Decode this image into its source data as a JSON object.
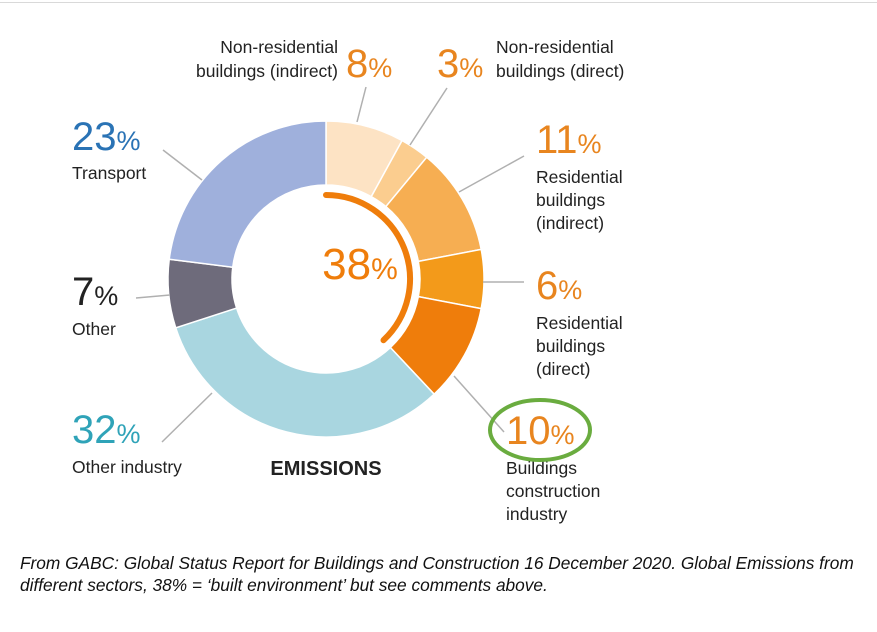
{
  "chart_data": {
    "type": "donut",
    "center_label": "EMISSIONS",
    "highlight": {
      "value": 38,
      "value_text": "38",
      "unit": "%"
    },
    "slices": [
      {
        "name": "Non-residential buildings (indirect)",
        "label_lines": [
          "Non-residential",
          "buildings (indirect)"
        ],
        "value": 8,
        "value_text": "8",
        "color": "#fde3c4",
        "text_color": "#e8851f"
      },
      {
        "name": "Non-residential buildings (direct)",
        "label_lines": [
          "Non-residential",
          "buildings (direct)"
        ],
        "value": 3,
        "value_text": "3",
        "color": "#fbcd8f",
        "text_color": "#e8851f"
      },
      {
        "name": "Residential buildings (indirect)",
        "label_lines": [
          "Residential",
          "buildings",
          "(indirect)"
        ],
        "value": 11,
        "value_text": "11",
        "color": "#f6ae52",
        "text_color": "#e8851f"
      },
      {
        "name": "Residential buildings (direct)",
        "label_lines": [
          "Residential",
          "buildings",
          "(direct)"
        ],
        "value": 6,
        "value_text": "6",
        "color": "#f39a1a",
        "text_color": "#e8851f"
      },
      {
        "name": "Buildings construction industry",
        "label_lines": [
          "Buildings",
          "construction",
          "industry"
        ],
        "value": 10,
        "value_text": "10",
        "color": "#ef7d0b",
        "text_color": "#e8851f"
      },
      {
        "name": "Other industry",
        "label_lines": [
          "Other industry"
        ],
        "value": 32,
        "value_text": "32",
        "color": "#a9d6e0",
        "text_color": "#2fa3b8"
      },
      {
        "name": "Other",
        "label_lines": [
          "Other"
        ],
        "value": 7,
        "value_text": "7",
        "color": "#6e6b7b",
        "text_color": "#222222"
      },
      {
        "name": "Transport",
        "label_lines": [
          "Transport"
        ],
        "value": 23,
        "value_text": "23",
        "color": "#9fb0dc",
        "text_color": "#2a73b5"
      }
    ],
    "circled_slice": "Buildings construction industry",
    "circle_color": "#6aac3f",
    "highlight_color": "#ef7d0b"
  },
  "caption": "From GABC: Global Status Report for Buildings and Construction 16 December 2020. Global Emissions from different sectors, 38% = ‘built environment’ but see comments above."
}
